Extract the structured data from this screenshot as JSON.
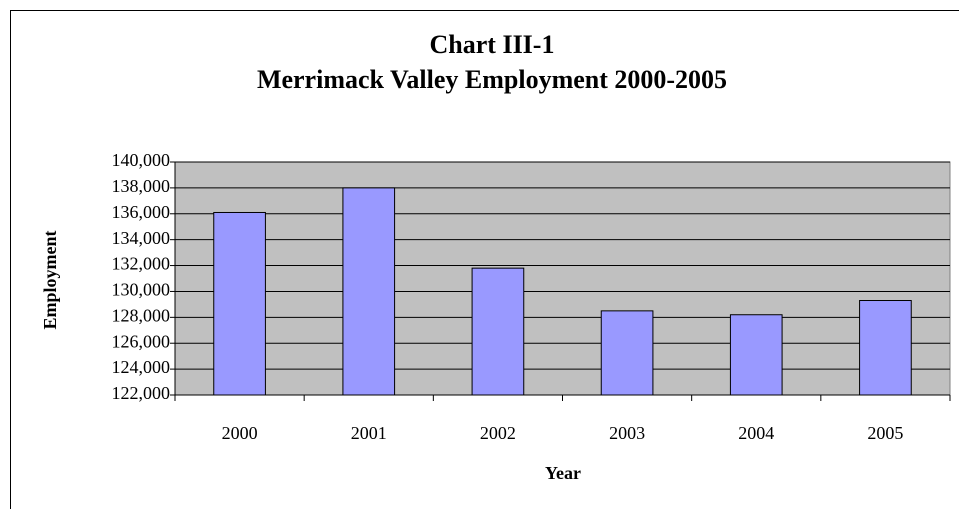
{
  "chart_data": {
    "type": "bar",
    "title": "Chart III-1",
    "subtitle": "Merrimack Valley Employment 2000-2005",
    "x_label": "Year",
    "y_label": "Employment",
    "categories": [
      "2000",
      "2001",
      "2002",
      "2003",
      "2004",
      "2005"
    ],
    "values": [
      136100,
      138000,
      131800,
      128500,
      128200,
      129300
    ],
    "color": "#9999ff",
    "ylim": [
      122000,
      140000
    ],
    "yticks": [
      {
        "value": 122000,
        "label": "122,000"
      },
      {
        "value": 124000,
        "label": "124,000"
      },
      {
        "value": 126000,
        "label": "126,000"
      },
      {
        "value": 128000,
        "label": "128,000"
      },
      {
        "value": 130000,
        "label": "130,000"
      },
      {
        "value": 132000,
        "label": "132,000"
      },
      {
        "value": 134000,
        "label": "134,000"
      },
      {
        "value": 136000,
        "label": "136,000"
      },
      {
        "value": 138000,
        "label": "138,000"
      },
      {
        "value": 140000,
        "label": "140,000"
      }
    ],
    "grid": true,
    "plot_background": "#c0c0c0"
  }
}
